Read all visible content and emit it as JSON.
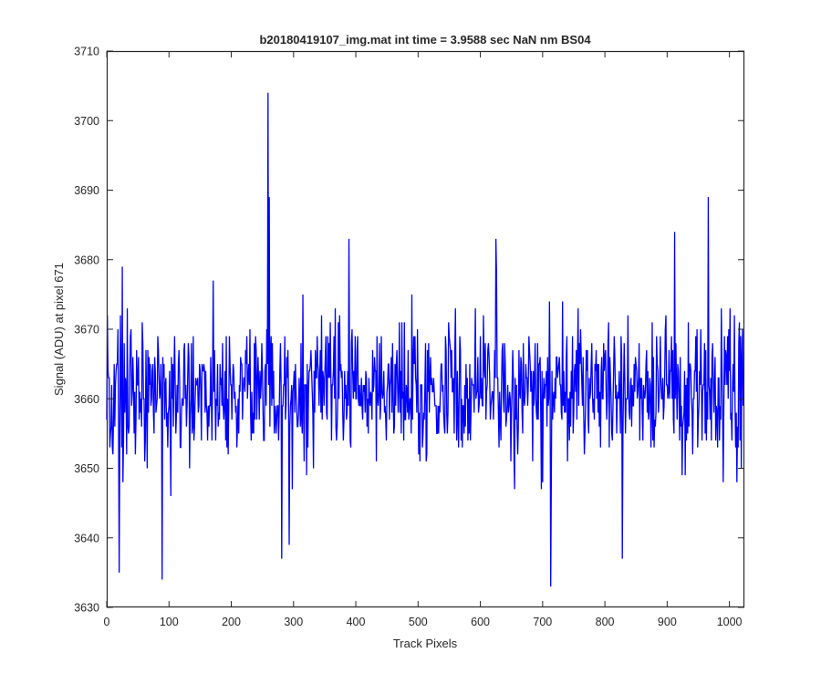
{
  "chart_data": {
    "type": "line",
    "title": "b20180419107_img.mat int time = 3.9588 sec  NaN nm BS04",
    "xlabel": "Track Pixels",
    "ylabel": "Signal (ADU) at pixel 671",
    "xlim": [
      0,
      1024
    ],
    "ylim": [
      3630,
      3710
    ],
    "xticks": [
      0,
      100,
      200,
      300,
      400,
      500,
      600,
      700,
      800,
      900,
      1000
    ],
    "yticks": [
      3630,
      3640,
      3650,
      3660,
      3670,
      3680,
      3690,
      3700,
      3710
    ],
    "grid": false,
    "series_color": "#0000ff",
    "series": [
      {
        "points_count": 1024,
        "baseline_mean": 3661,
        "typical_min": 3644,
        "typical_max": 3678,
        "notable_points": [
          {
            "x": 1,
            "y": 3672
          },
          {
            "x": 20,
            "y": 3635
          },
          {
            "x": 25,
            "y": 3679
          },
          {
            "x": 89,
            "y": 3634
          },
          {
            "x": 259,
            "y": 3704
          },
          {
            "x": 261,
            "y": 3689
          },
          {
            "x": 281,
            "y": 3637
          },
          {
            "x": 293,
            "y": 3639
          },
          {
            "x": 389,
            "y": 3683
          },
          {
            "x": 625,
            "y": 3683
          },
          {
            "x": 713,
            "y": 3633
          },
          {
            "x": 828,
            "y": 3637
          },
          {
            "x": 912,
            "y": 3684
          },
          {
            "x": 966,
            "y": 3689
          },
          {
            "x": 1023,
            "y": 3664
          }
        ]
      }
    ]
  }
}
